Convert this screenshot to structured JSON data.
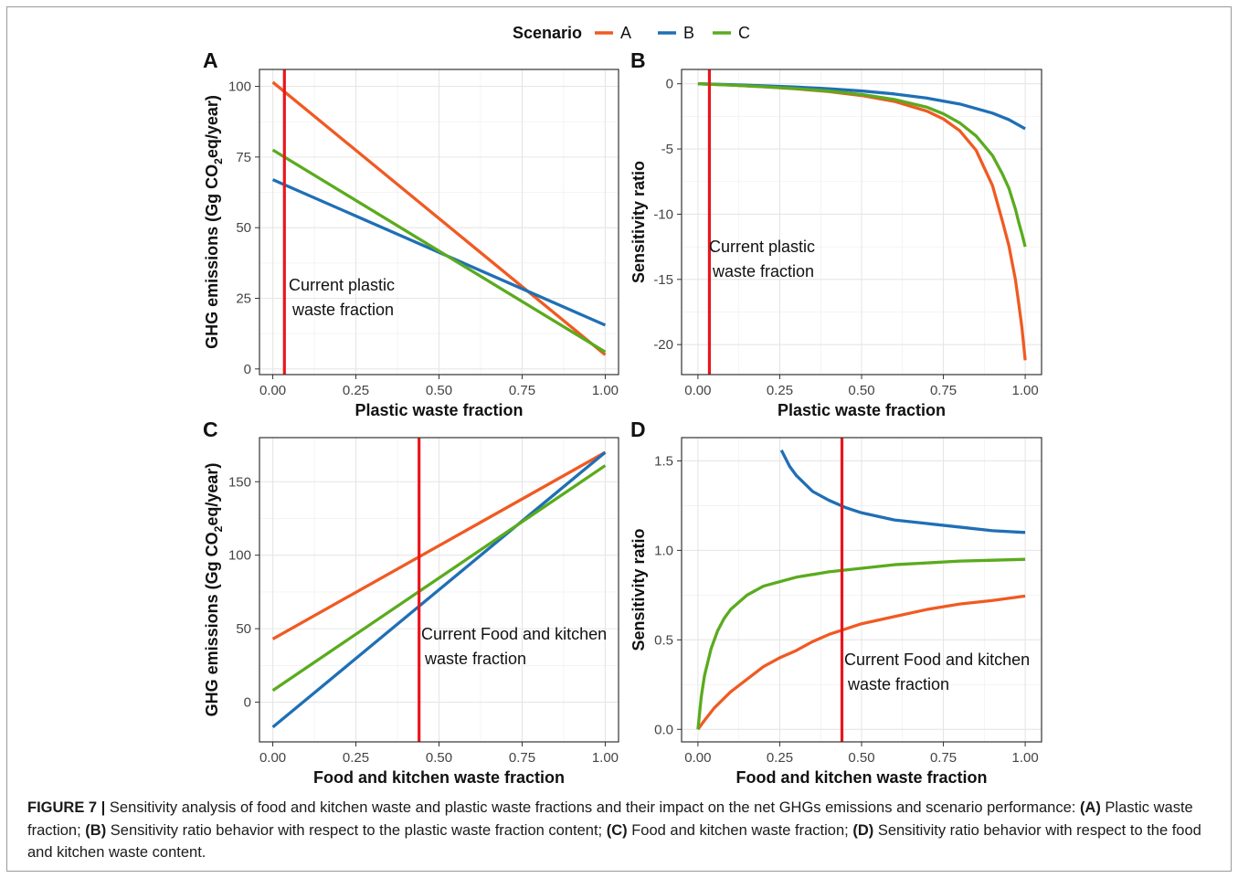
{
  "legend": {
    "title": "Scenario",
    "items": [
      {
        "label": "A",
        "color": "#f05a22"
      },
      {
        "label": "B",
        "color": "#1f6fb5"
      },
      {
        "label": "C",
        "color": "#5aab1e"
      }
    ]
  },
  "colors": {
    "A": "#f05a22",
    "B": "#1f6fb5",
    "C": "#5aab1e",
    "marker": "#e8161c",
    "grid": "#e6e6e6",
    "axis": "#333333"
  },
  "chart_data": [
    {
      "panel": "A",
      "type": "line",
      "xlabel": "Plastic waste fraction",
      "ylabel_pre": "GHG emissions (Gg CO",
      "ylabel_sub": "2",
      "ylabel_post": "eq/year)",
      "xlim": [
        -0.04,
        1.04
      ],
      "ylim": [
        -2,
        106
      ],
      "xticks": [
        {
          "v": 0,
          "label": "0.00"
        },
        {
          "v": 0.25,
          "label": "0.25"
        },
        {
          "v": 0.5,
          "label": "0.50"
        },
        {
          "v": 0.75,
          "label": "0.75"
        },
        {
          "v": 1,
          "label": "1.00"
        }
      ],
      "yticks": [
        {
          "v": 0,
          "label": "0"
        },
        {
          "v": 25,
          "label": "25"
        },
        {
          "v": 50,
          "label": "50"
        },
        {
          "v": 75,
          "label": "75"
        },
        {
          "v": 100,
          "label": "100"
        }
      ],
      "marker_x": 0.035,
      "annotation": [
        "Current plastic",
        "waste fraction"
      ],
      "series": [
        {
          "name": "A",
          "x": [
            0,
            1
          ],
          "y": [
            101.5,
            5
          ]
        },
        {
          "name": "B",
          "x": [
            0,
            1
          ],
          "y": [
            67,
            15.5
          ]
        },
        {
          "name": "C",
          "x": [
            0,
            1
          ],
          "y": [
            77.5,
            6
          ]
        }
      ]
    },
    {
      "panel": "B",
      "type": "line",
      "xlabel": "Plastic waste fraction",
      "ylabel_pre": "Sensitivity ratio",
      "ylabel_sub": "",
      "ylabel_post": "",
      "xlim": [
        -0.05,
        1.05
      ],
      "ylim": [
        -22.3,
        1.1
      ],
      "xticks": [
        {
          "v": 0,
          "label": "0.00"
        },
        {
          "v": 0.25,
          "label": "0.25"
        },
        {
          "v": 0.5,
          "label": "0.50"
        },
        {
          "v": 0.75,
          "label": "0.75"
        },
        {
          "v": 1,
          "label": "1.00"
        }
      ],
      "yticks": [
        {
          "v": 0,
          "label": "0"
        },
        {
          "v": -5,
          "label": "-5"
        },
        {
          "v": -10,
          "label": "-10"
        },
        {
          "v": -15,
          "label": "-15"
        },
        {
          "v": -20,
          "label": "-20"
        }
      ],
      "marker_x": 0.035,
      "annotation": [
        "Current plastic",
        "waste fraction"
      ],
      "series": [
        {
          "name": "A",
          "x": [
            0,
            0.1,
            0.2,
            0.3,
            0.4,
            0.5,
            0.6,
            0.7,
            0.75,
            0.8,
            0.85,
            0.9,
            0.93,
            0.95,
            0.97,
            0.98,
            0.99,
            1.0
          ],
          "y": [
            0,
            -0.1,
            -0.23,
            -0.39,
            -0.6,
            -0.9,
            -1.35,
            -2.1,
            -2.7,
            -3.6,
            -5.1,
            -7.8,
            -10.5,
            -12.4,
            -15.0,
            -16.8,
            -18.7,
            -21.2
          ]
        },
        {
          "name": "B",
          "x": [
            0,
            0.1,
            0.2,
            0.3,
            0.4,
            0.5,
            0.6,
            0.7,
            0.8,
            0.9,
            0.95,
            1.0
          ],
          "y": [
            0,
            -0.07,
            -0.15,
            -0.25,
            -0.38,
            -0.55,
            -0.78,
            -1.1,
            -1.55,
            -2.25,
            -2.75,
            -3.45
          ]
        },
        {
          "name": "C",
          "x": [
            0,
            0.1,
            0.2,
            0.3,
            0.4,
            0.5,
            0.6,
            0.7,
            0.75,
            0.8,
            0.85,
            0.9,
            0.93,
            0.95,
            0.97,
            0.98,
            0.99,
            1.0
          ],
          "y": [
            0,
            -0.1,
            -0.22,
            -0.37,
            -0.56,
            -0.82,
            -1.2,
            -1.8,
            -2.3,
            -3.0,
            -4.0,
            -5.5,
            -6.9,
            -8.0,
            -9.6,
            -10.6,
            -11.5,
            -12.5
          ]
        }
      ]
    },
    {
      "panel": "C",
      "type": "line",
      "xlabel": "Food and kitchen waste fraction",
      "ylabel_pre": "GHG emissions (Gg CO",
      "ylabel_sub": "2",
      "ylabel_post": "eq/year)",
      "xlim": [
        -0.04,
        1.04
      ],
      "ylim": [
        -27,
        180
      ],
      "xticks": [
        {
          "v": 0,
          "label": "0.00"
        },
        {
          "v": 0.25,
          "label": "0.25"
        },
        {
          "v": 0.5,
          "label": "0.50"
        },
        {
          "v": 0.75,
          "label": "0.75"
        },
        {
          "v": 1,
          "label": "1.00"
        }
      ],
      "yticks": [
        {
          "v": 0,
          "label": "0"
        },
        {
          "v": 50,
          "label": "50"
        },
        {
          "v": 100,
          "label": "100"
        },
        {
          "v": 150,
          "label": "150"
        }
      ],
      "marker_x": 0.44,
      "annotation": [
        "Current Food and kitchen",
        "waste fraction"
      ],
      "series": [
        {
          "name": "A",
          "x": [
            0,
            1
          ],
          "y": [
            43,
            170
          ]
        },
        {
          "name": "B",
          "x": [
            0,
            1
          ],
          "y": [
            -17,
            170
          ]
        },
        {
          "name": "C",
          "x": [
            0,
            1
          ],
          "y": [
            8,
            161
          ]
        }
      ]
    },
    {
      "panel": "D",
      "type": "line",
      "xlabel": "Food and kitchen waste fraction",
      "ylabel_pre": "Sensitivity ratio",
      "ylabel_sub": "",
      "ylabel_post": "",
      "xlim": [
        -0.05,
        1.05
      ],
      "ylim": [
        -0.07,
        1.63
      ],
      "xticks": [
        {
          "v": 0,
          "label": "0.00"
        },
        {
          "v": 0.25,
          "label": "0.25"
        },
        {
          "v": 0.5,
          "label": "0.50"
        },
        {
          "v": 0.75,
          "label": "0.75"
        },
        {
          "v": 1,
          "label": "1.00"
        }
      ],
      "yticks": [
        {
          "v": 0,
          "label": "0.0"
        },
        {
          "v": 0.5,
          "label": "0.5"
        },
        {
          "v": 1.0,
          "label": "1.0"
        },
        {
          "v": 1.5,
          "label": "1.5"
        }
      ],
      "marker_x": 0.44,
      "annotation": [
        "Current Food and kitchen",
        "waste fraction"
      ],
      "series": [
        {
          "name": "A",
          "x": [
            0,
            0.02,
            0.05,
            0.1,
            0.15,
            0.2,
            0.25,
            0.3,
            0.35,
            0.4,
            0.45,
            0.5,
            0.6,
            0.7,
            0.8,
            0.9,
            1.0
          ],
          "y": [
            0,
            0.05,
            0.12,
            0.21,
            0.28,
            0.35,
            0.4,
            0.44,
            0.49,
            0.53,
            0.56,
            0.59,
            0.63,
            0.67,
            0.7,
            0.72,
            0.745
          ]
        },
        {
          "name": "B",
          "x": [
            0.255,
            0.28,
            0.3,
            0.35,
            0.4,
            0.45,
            0.5,
            0.6,
            0.7,
            0.8,
            0.9,
            1.0
          ],
          "y": [
            1.56,
            1.47,
            1.42,
            1.33,
            1.28,
            1.24,
            1.21,
            1.17,
            1.15,
            1.13,
            1.11,
            1.1
          ]
        },
        {
          "name": "C",
          "x": [
            0,
            0.01,
            0.02,
            0.04,
            0.06,
            0.08,
            0.1,
            0.15,
            0.2,
            0.3,
            0.4,
            0.5,
            0.6,
            0.7,
            0.8,
            0.9,
            1.0
          ],
          "y": [
            0,
            0.18,
            0.3,
            0.45,
            0.55,
            0.62,
            0.67,
            0.75,
            0.8,
            0.85,
            0.88,
            0.9,
            0.92,
            0.93,
            0.94,
            0.945,
            0.95
          ]
        }
      ]
    }
  ],
  "caption": {
    "lead": "FIGURE 7 | ",
    "intro": "Sensitivity analysis of food and kitchen waste and plastic waste fractions and their impact on the net GHGs emissions and scenario performance: ",
    "tagA": "(A)",
    "textA": " Plastic waste fraction; ",
    "tagB": "(B)",
    "textB": " Sensitivity ratio behavior with respect to the plastic waste fraction content; ",
    "tagC": "(C)",
    "textC": " Food and kitchen waste fraction; ",
    "tagD": "(D)",
    "textD": " Sensitivity ratio behavior with respect to the food and kitchen waste content."
  }
}
